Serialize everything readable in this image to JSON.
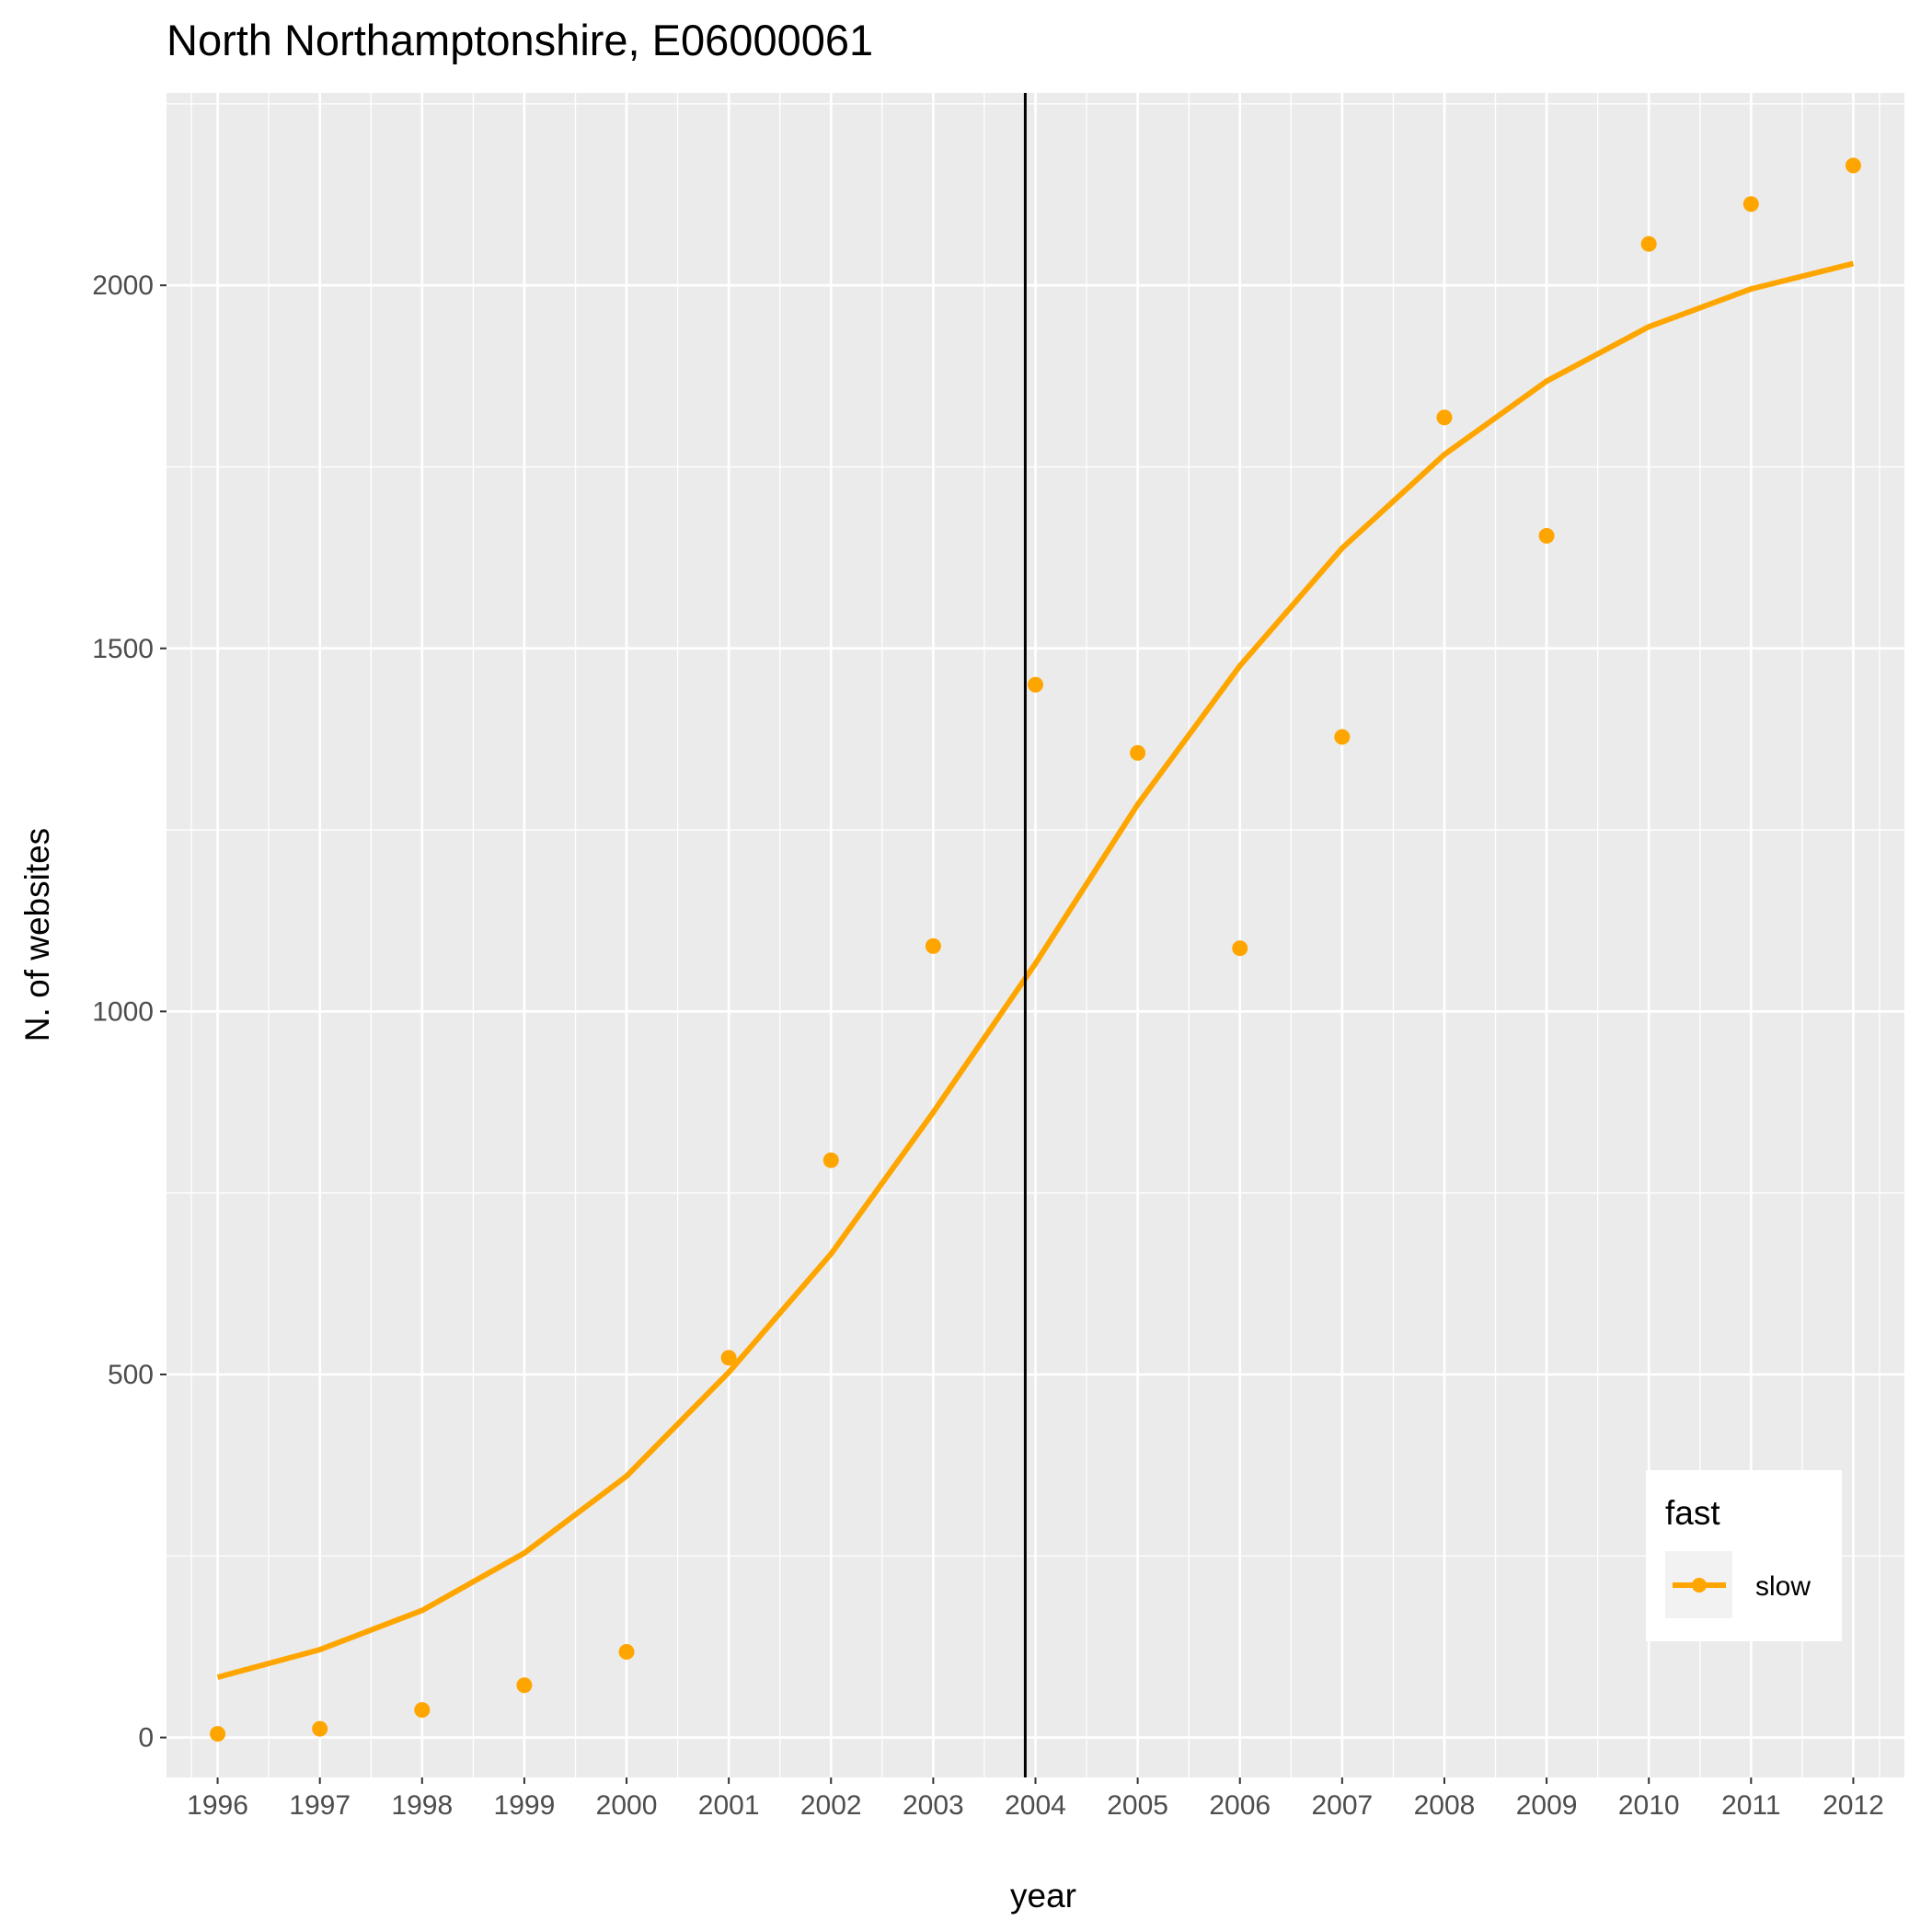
{
  "chart_data": {
    "type": "scatter",
    "title": "North Northamptonshire, E06000061",
    "xlabel": "year",
    "ylabel": "N. of websites",
    "x": [
      1996,
      1997,
      1998,
      1999,
      2000,
      2001,
      2002,
      2003,
      2004,
      2005,
      2006,
      2007,
      2008,
      2009,
      2010,
      2011,
      2012
    ],
    "x_tick_labels": [
      "1996",
      "1997",
      "1998",
      "1999",
      "2000",
      "2001",
      "2002",
      "2003",
      "2004",
      "2005",
      "2006",
      "2007",
      "2008",
      "2009",
      "2010",
      "2011",
      "2012"
    ],
    "y_ticks": [
      0,
      500,
      1000,
      1500,
      2000
    ],
    "y_tick_labels": [
      "0",
      "500",
      "1000",
      "1500",
      "2000"
    ],
    "xlim": [
      1995.5,
      2012.5
    ],
    "ylim": [
      -55,
      2265
    ],
    "grid": true,
    "vline_x": 2003.9,
    "series": [
      {
        "name": "slow",
        "points": [
          5,
          12,
          38,
          72,
          118,
          523,
          795,
          1090,
          1450,
          1356,
          1087,
          1378,
          1818,
          1655,
          2057,
          2112,
          2165
        ],
        "smooth": [
          83,
          121,
          175,
          254,
          360,
          503,
          666,
          861,
          1066,
          1285,
          1476,
          1638,
          1767,
          1868,
          1943,
          1995,
          2030
        ]
      }
    ],
    "legend": {
      "title": "fast",
      "position": "bottom-right"
    },
    "colors": {
      "series": "#FFA500",
      "panel": "#EBEBEB",
      "grid": "#FFFFFF",
      "vline": "#000000"
    }
  }
}
